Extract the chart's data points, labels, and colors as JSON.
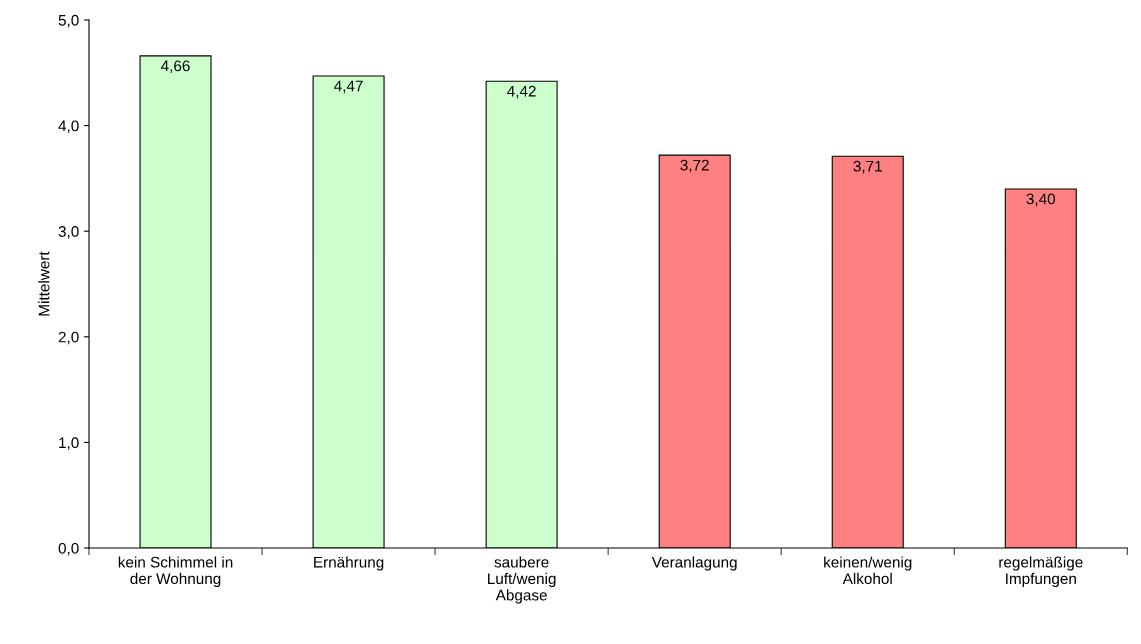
{
  "chart_data": {
    "type": "bar",
    "ylabel": "Mittelwert",
    "categories": [
      "kein Schimmel in\nder Wohnung",
      "Ernährung",
      "saubere\nLuft/wenig\nAbgase",
      "Veranlagung",
      "keinen/wenig\nAlkohol",
      "regelmäßige\nImpfungen"
    ],
    "values": [
      4.66,
      4.47,
      4.42,
      3.72,
      3.71,
      3.4
    ],
    "value_labels": [
      "4,66",
      "4,47",
      "4,42",
      "3,72",
      "3,71",
      "3,40"
    ],
    "colors": [
      "#ccffcc",
      "#ccffcc",
      "#ccffcc",
      "#ff8080",
      "#ff8080",
      "#ff8080"
    ],
    "ylim": [
      0,
      5
    ],
    "yticks": [
      {
        "value": 0,
        "label": "0,0"
      },
      {
        "value": 1,
        "label": "1,0"
      },
      {
        "value": 2,
        "label": "2,0"
      },
      {
        "value": 3,
        "label": "3,0"
      },
      {
        "value": 4,
        "label": "4,0"
      },
      {
        "value": 5,
        "label": "5,0"
      }
    ],
    "grid": false,
    "legend": false
  }
}
